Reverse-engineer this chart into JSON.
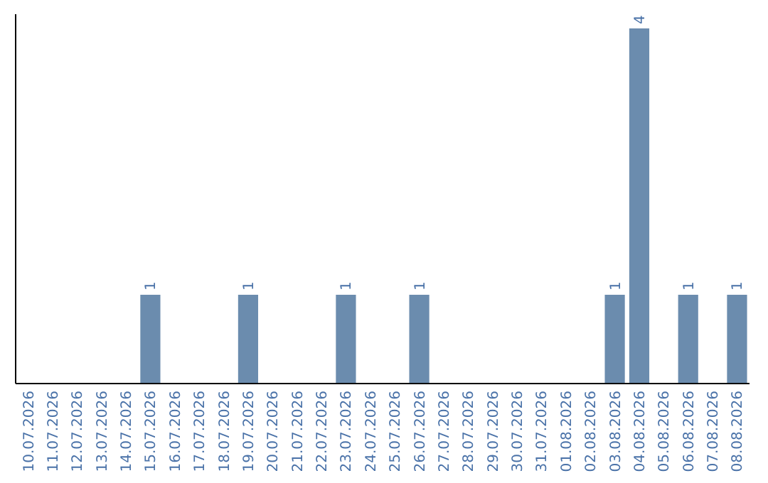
{
  "chart_data": {
    "type": "bar",
    "categories": [
      "10.07.2026",
      "11.07.2026",
      "12.07.2026",
      "13.07.2026",
      "14.07.2026",
      "15.07.2026",
      "16.07.2026",
      "17.07.2026",
      "18.07.2026",
      "19.07.2026",
      "20.07.2026",
      "21.07.2026",
      "22.07.2026",
      "23.07.2026",
      "24.07.2026",
      "25.07.2026",
      "26.07.2026",
      "27.07.2026",
      "28.07.2026",
      "29.07.2026",
      "30.07.2026",
      "31.07.2026",
      "01.08.2026",
      "02.08.2026",
      "03.08.2026",
      "04.08.2026",
      "05.08.2026",
      "06.08.2026",
      "07.08.2026",
      "08.08.2026"
    ],
    "values": [
      0,
      0,
      0,
      0,
      0,
      1,
      0,
      0,
      0,
      1,
      0,
      0,
      0,
      1,
      0,
      0,
      1,
      0,
      0,
      0,
      0,
      0,
      0,
      0,
      1,
      4,
      0,
      1,
      0,
      1
    ],
    "value_labels": [
      null,
      null,
      null,
      null,
      null,
      "1",
      null,
      null,
      null,
      "1",
      null,
      null,
      null,
      "1",
      null,
      null,
      "1",
      null,
      null,
      null,
      null,
      null,
      null,
      null,
      "1",
      "4",
      null,
      "1",
      null,
      "1"
    ],
    "color": "#6b8cae",
    "tick_labels": "x"
  }
}
